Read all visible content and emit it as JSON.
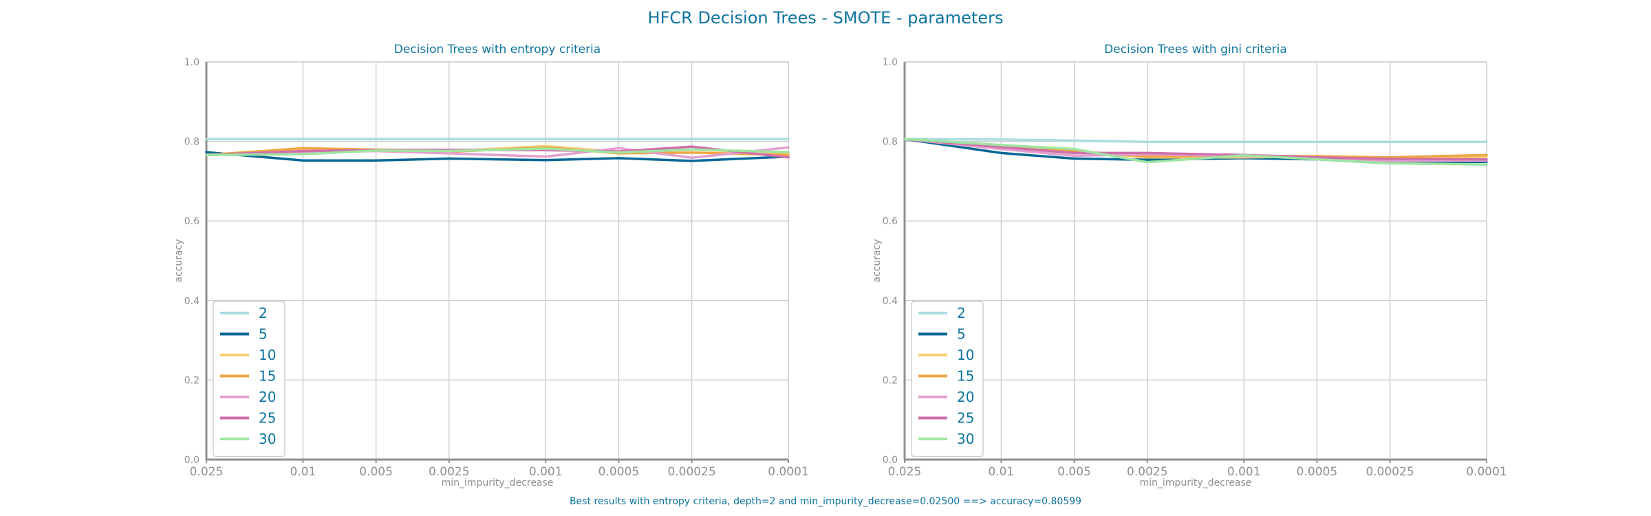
{
  "title": "HFCR Decision Trees - SMOTE - parameters",
  "footer": "Best results with entropy criteria, depth=2 and min_impurity_decrease=0.02500 ==> accuracy=0.80599",
  "colors": {
    "2": "#a9dce0",
    "5": "#076896",
    "10": "#f7cf6e",
    "15": "#f0a545",
    "20": "#e39fcd",
    "25": "#cf70aa",
    "30": "#9ee5a1",
    "text": "#0d739f",
    "axis": "#8f8f8f",
    "grid": "#cfcfcf"
  },
  "chart_data": [
    {
      "type": "line",
      "title": "Decision Trees with entropy criteria",
      "xlabel": "min_impurity_decrease",
      "ylabel": "accuracy",
      "x_scale": "log",
      "x_inverted": true,
      "x": [
        0.025,
        0.01,
        0.005,
        0.0025,
        0.001,
        0.0005,
        0.00025,
        0.0001
      ],
      "x_tick_labels": [
        "0.025",
        "0.01",
        "0.005",
        "0.0025",
        "0.001",
        "0.0005",
        "0.00025",
        "0.0001"
      ],
      "ylim": [
        0.0,
        1.0
      ],
      "y_ticks": [
        "0.0",
        "0.2",
        "0.4",
        "0.6",
        "0.8",
        "1.0"
      ],
      "grid": true,
      "legend_position": "lower-left",
      "series": [
        {
          "name": "2",
          "values": [
            0.806,
            0.806,
            0.806,
            0.806,
            0.806,
            0.806,
            0.806,
            0.806
          ]
        },
        {
          "name": "5",
          "values": [
            0.773,
            0.752,
            0.752,
            0.757,
            0.753,
            0.758,
            0.751,
            0.762
          ]
        },
        {
          "name": "10",
          "values": [
            0.766,
            0.782,
            0.78,
            0.776,
            0.788,
            0.774,
            0.78,
            0.769
          ]
        },
        {
          "name": "15",
          "values": [
            0.766,
            0.783,
            0.779,
            0.774,
            0.785,
            0.77,
            0.772,
            0.766
          ]
        },
        {
          "name": "20",
          "values": [
            0.766,
            0.772,
            0.776,
            0.77,
            0.762,
            0.783,
            0.759,
            0.785
          ]
        },
        {
          "name": "25",
          "values": [
            0.766,
            0.776,
            0.778,
            0.779,
            0.778,
            0.775,
            0.787,
            0.76
          ]
        },
        {
          "name": "30",
          "values": [
            0.766,
            0.768,
            0.777,
            0.776,
            0.782,
            0.772,
            0.78,
            0.773
          ]
        }
      ]
    },
    {
      "type": "line",
      "title": "Decision Trees with gini criteria",
      "xlabel": "min_impurity_decrease",
      "ylabel": "accuracy",
      "x_scale": "log",
      "x_inverted": true,
      "x": [
        0.025,
        0.01,
        0.005,
        0.0025,
        0.001,
        0.0005,
        0.00025,
        0.0001
      ],
      "x_tick_labels": [
        "0.025",
        "0.01",
        "0.005",
        "0.0025",
        "0.001",
        "0.0005",
        "0.00025",
        "0.0001"
      ],
      "ylim": [
        0.0,
        1.0
      ],
      "y_ticks": [
        "0.0",
        "0.2",
        "0.4",
        "0.6",
        "0.8",
        "1.0"
      ],
      "grid": true,
      "legend_position": "lower-left",
      "series": [
        {
          "name": "2",
          "values": [
            0.806,
            0.805,
            0.802,
            0.799,
            0.799,
            0.799,
            0.799,
            0.799
          ]
        },
        {
          "name": "5",
          "values": [
            0.806,
            0.771,
            0.757,
            0.754,
            0.758,
            0.755,
            0.745,
            0.749
          ]
        },
        {
          "name": "10",
          "values": [
            0.806,
            0.788,
            0.774,
            0.76,
            0.76,
            0.762,
            0.756,
            0.762
          ]
        },
        {
          "name": "15",
          "values": [
            0.806,
            0.79,
            0.776,
            0.762,
            0.764,
            0.763,
            0.76,
            0.766
          ]
        },
        {
          "name": "20",
          "values": [
            0.806,
            0.781,
            0.764,
            0.768,
            0.763,
            0.759,
            0.751,
            0.752
          ]
        },
        {
          "name": "25",
          "values": [
            0.806,
            0.786,
            0.771,
            0.771,
            0.766,
            0.76,
            0.756,
            0.755
          ]
        },
        {
          "name": "30",
          "values": [
            0.806,
            0.791,
            0.781,
            0.748,
            0.765,
            0.755,
            0.745,
            0.742
          ]
        }
      ]
    }
  ]
}
